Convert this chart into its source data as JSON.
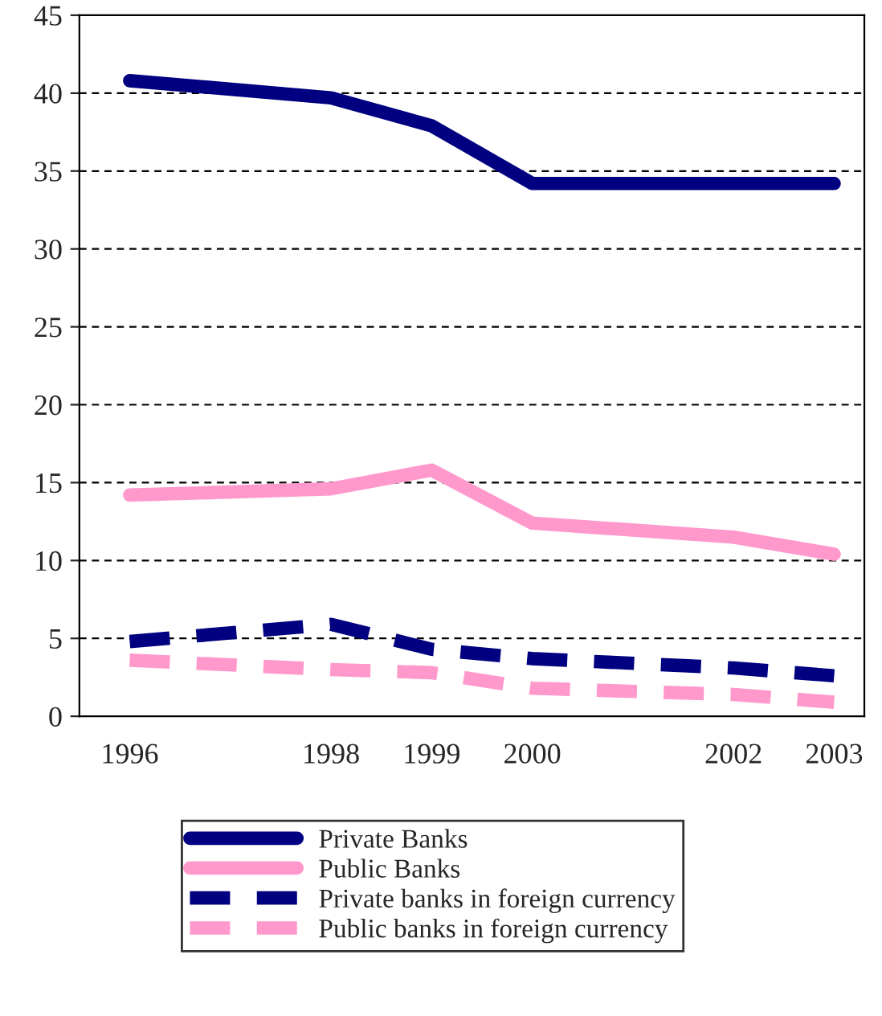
{
  "chart_data": {
    "type": "line",
    "x": [
      1996,
      1998,
      1999,
      2000,
      2002,
      2003
    ],
    "series": [
      {
        "name": "Private Banks",
        "color": "#000080",
        "line_style": "solid",
        "values": [
          40.8,
          39.7,
          37.9,
          34.2,
          34.2,
          34.2
        ]
      },
      {
        "name": "Public Banks",
        "color": "#ff99cc",
        "line_style": "solid",
        "values": [
          14.2,
          14.6,
          15.8,
          12.4,
          11.5,
          10.4
        ]
      },
      {
        "name": "Private banks in foreign currency",
        "color": "#000080",
        "line_style": "dashed",
        "values": [
          4.8,
          5.9,
          4.3,
          3.7,
          3.1,
          2.6
        ]
      },
      {
        "name": "Public banks in foreign currency",
        "color": "#ff99cc",
        "line_style": "dashed",
        "values": [
          3.6,
          3.0,
          2.8,
          1.8,
          1.4,
          0.9
        ]
      }
    ],
    "xlim": [
      1995.5,
      2003.3
    ],
    "xticks": [
      1996,
      1998,
      1999,
      2000,
      2002,
      2003
    ],
    "ylim": [
      0,
      45
    ],
    "yticks": [
      0,
      5,
      10,
      15,
      20,
      25,
      30,
      35,
      40,
      45
    ],
    "grid": "y",
    "legend": "bottom",
    "marker": "none"
  }
}
